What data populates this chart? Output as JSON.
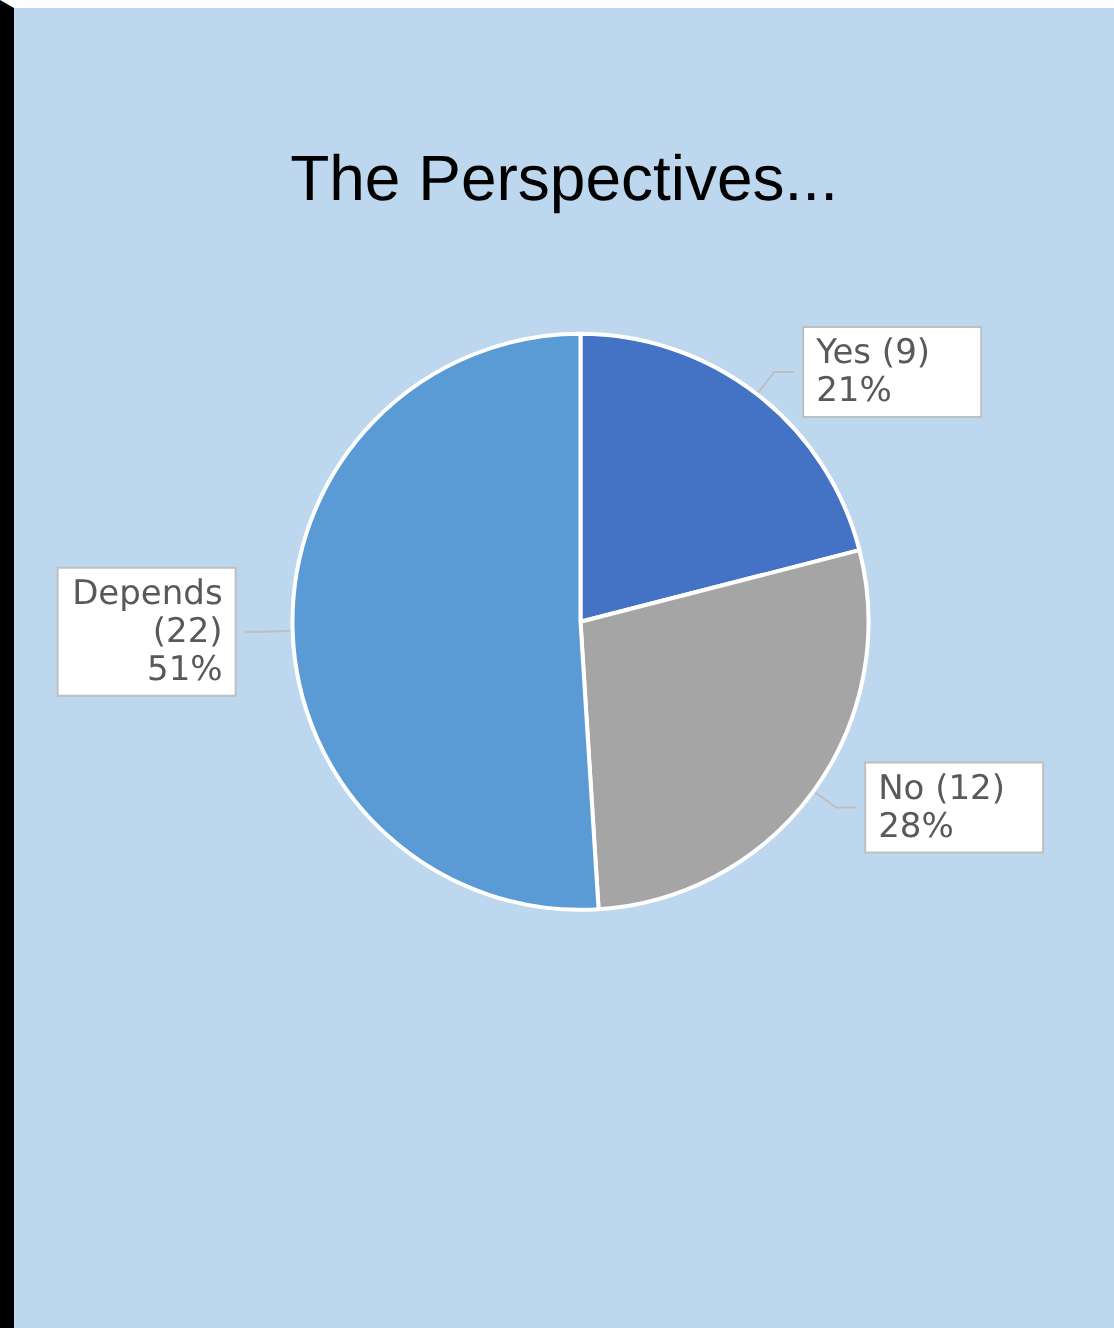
{
  "chart_data": {
    "type": "pie",
    "title": "The Perspectives...",
    "categories": [
      "Yes (9)",
      "No (12)",
      "Depends (22)"
    ],
    "values": [
      21,
      28,
      51
    ],
    "colors": [
      "#4472c4",
      "#a5a5a5",
      "#5b9bd5"
    ],
    "value_labels": [
      "21%",
      "28%",
      "51%"
    ],
    "legend": false
  }
}
